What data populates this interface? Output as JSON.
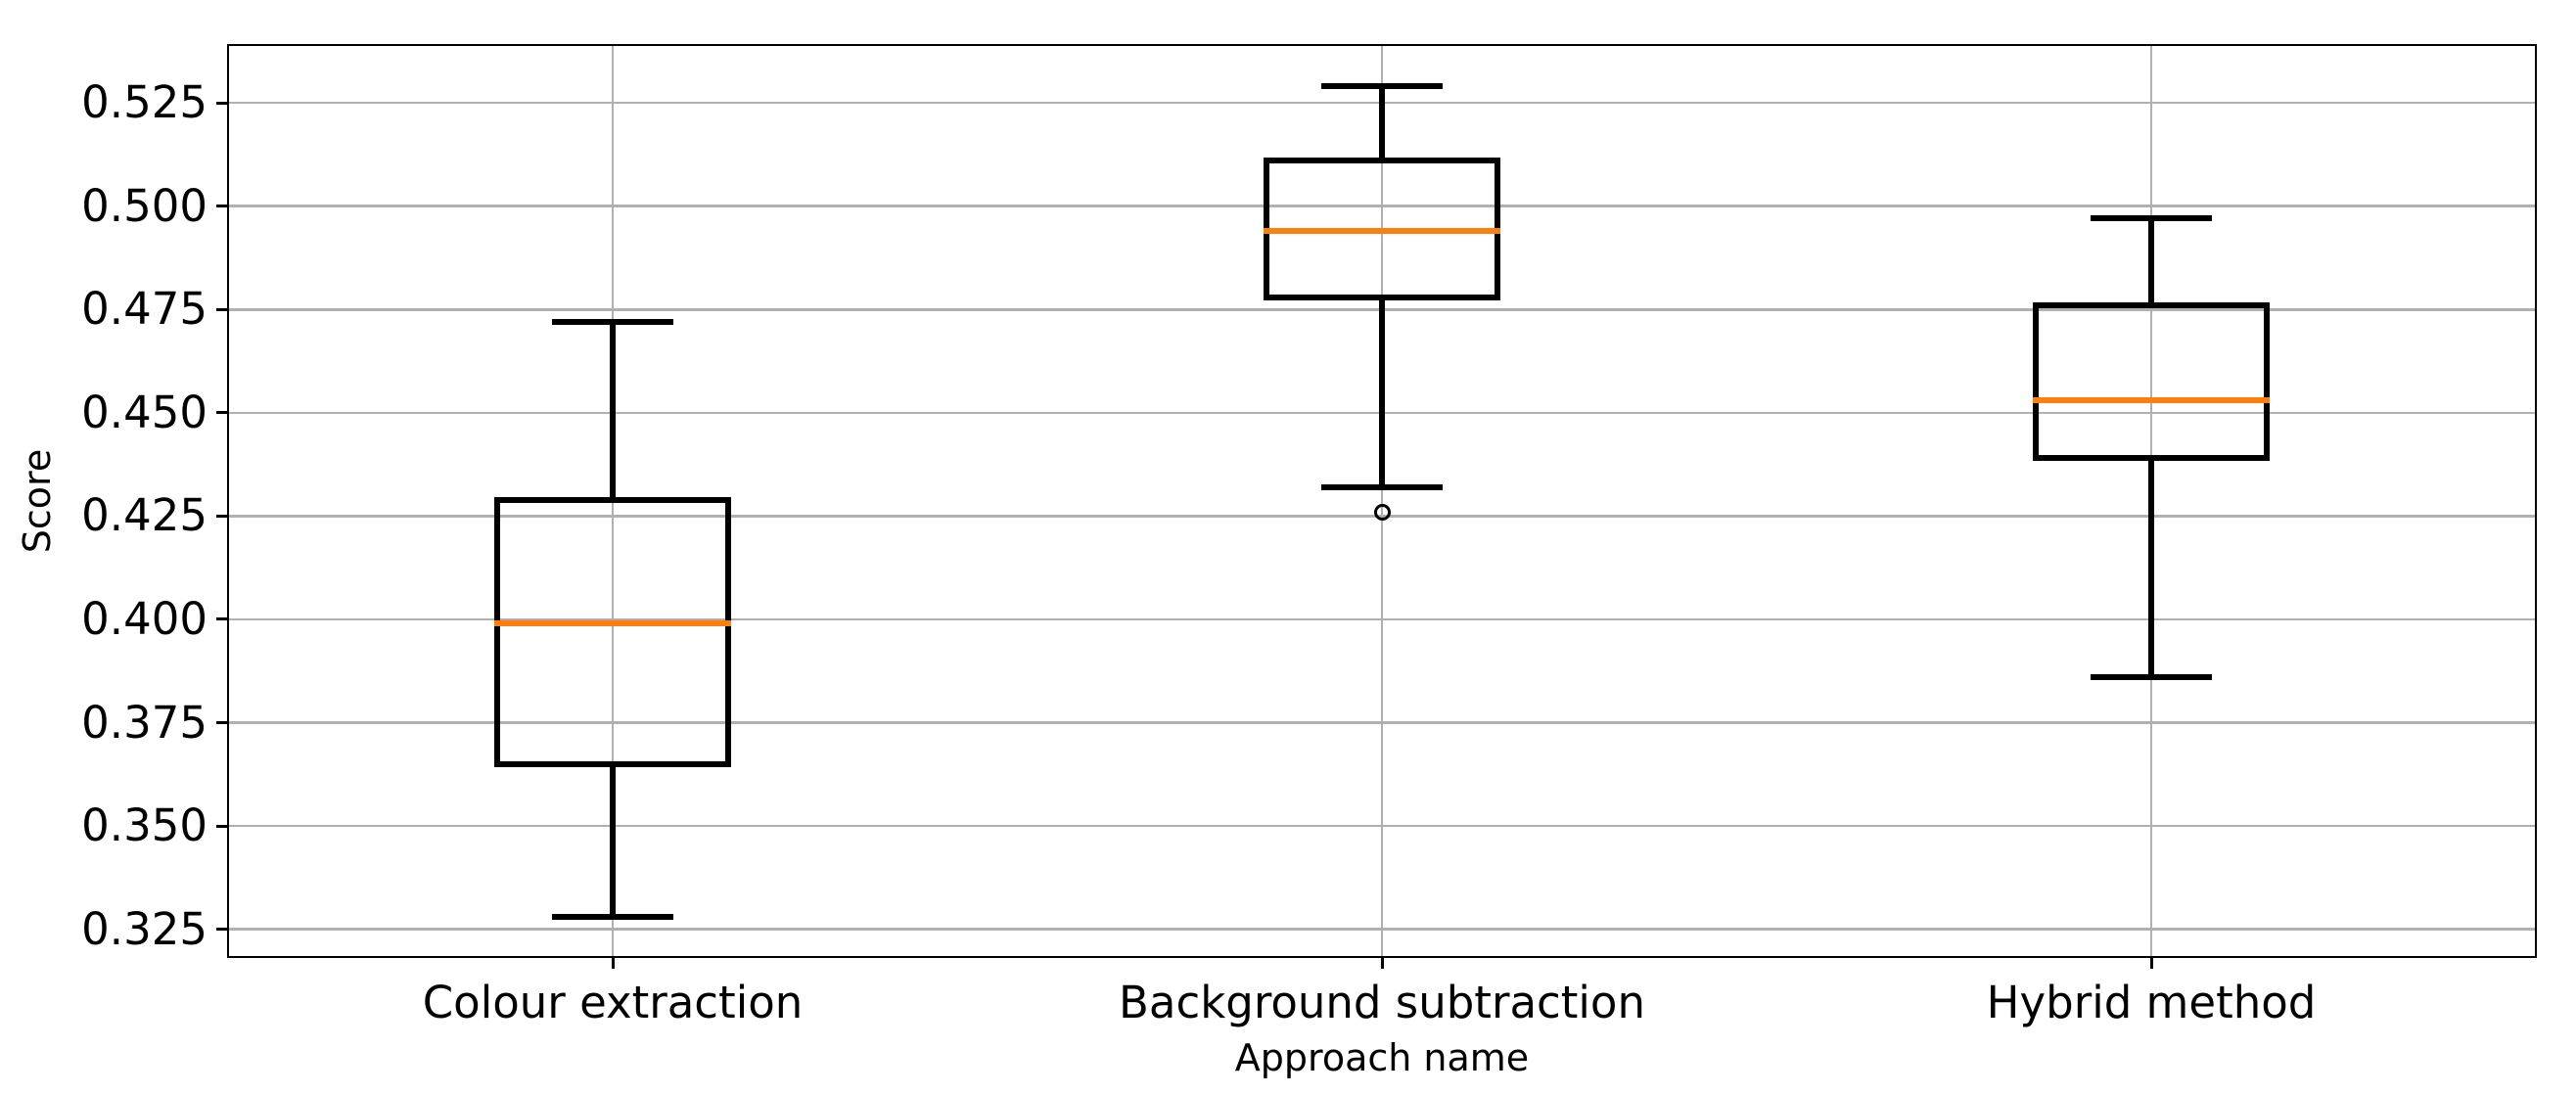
{
  "chart_data": {
    "type": "boxplot",
    "title": "",
    "xlabel": "Approach name",
    "ylabel": "Score",
    "categories": [
      "Colour extraction",
      "Background subtraction",
      "Hybrid method"
    ],
    "series": [
      {
        "name": "Colour extraction",
        "whisker_low": 0.328,
        "q1": 0.365,
        "median": 0.399,
        "q3": 0.429,
        "whisker_high": 0.472,
        "outliers": []
      },
      {
        "name": "Background subtraction",
        "whisker_low": 0.432,
        "q1": 0.478,
        "median": 0.494,
        "q3": 0.511,
        "whisker_high": 0.529,
        "outliers": [
          0.426
        ]
      },
      {
        "name": "Hybrid method",
        "whisker_low": 0.386,
        "q1": 0.439,
        "median": 0.453,
        "q3": 0.476,
        "whisker_high": 0.497,
        "outliers": []
      }
    ],
    "yticks": [
      0.325,
      0.35,
      0.375,
      0.4,
      0.425,
      0.45,
      0.475,
      0.5,
      0.525
    ],
    "ytick_labels": [
      "0.325",
      "0.350",
      "0.375",
      "0.400",
      "0.425",
      "0.450",
      "0.475",
      "0.500",
      "0.525"
    ],
    "ylim": [
      0.3183,
      0.539
    ],
    "xlim": [
      0.5,
      3.5
    ],
    "positions": [
      1,
      2,
      3
    ],
    "grid": true,
    "legend_position": "none",
    "colors": {
      "median": "#ff7f0e",
      "box_edge": "#000000",
      "grid": "#b0b0b0",
      "text": "#000000",
      "background": "#ffffff"
    }
  }
}
